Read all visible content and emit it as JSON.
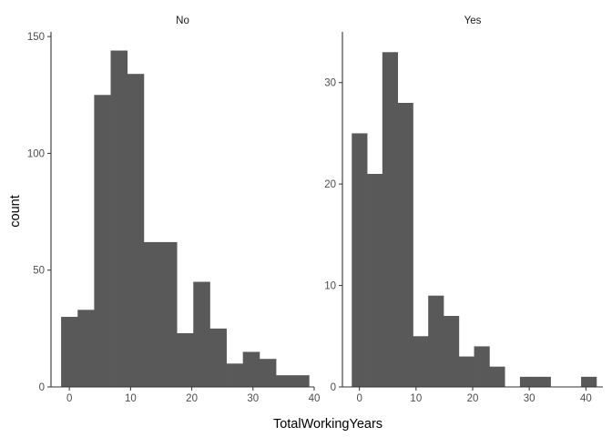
{
  "chart_data": {
    "type": "bar",
    "subtype": "histogram",
    "xlabel": "TotalWorkingYears",
    "ylabel": "count",
    "binwidth": 2.7,
    "bar_color": "#595959",
    "grid": false,
    "legend": "none",
    "facets": [
      {
        "label": "No",
        "xlim": [
          -3,
          40
        ],
        "ylim": [
          0,
          152
        ],
        "xticks": [
          0,
          10,
          20,
          30,
          40
        ],
        "yticks": [
          0,
          50,
          100,
          150
        ],
        "bins": [
          {
            "x0": -1.35,
            "x1": 1.35,
            "count": 30
          },
          {
            "x0": 1.35,
            "x1": 4.05,
            "count": 33
          },
          {
            "x0": 4.05,
            "x1": 6.75,
            "count": 125
          },
          {
            "x0": 6.75,
            "x1": 9.45,
            "count": 144
          },
          {
            "x0": 9.45,
            "x1": 12.15,
            "count": 134
          },
          {
            "x0": 12.15,
            "x1": 14.85,
            "count": 62
          },
          {
            "x0": 14.85,
            "x1": 17.55,
            "count": 62
          },
          {
            "x0": 17.55,
            "x1": 20.25,
            "count": 23
          },
          {
            "x0": 20.25,
            "x1": 22.95,
            "count": 45
          },
          {
            "x0": 22.95,
            "x1": 25.65,
            "count": 25
          },
          {
            "x0": 25.65,
            "x1": 28.35,
            "count": 10
          },
          {
            "x0": 28.35,
            "x1": 31.05,
            "count": 15
          },
          {
            "x0": 31.05,
            "x1": 33.75,
            "count": 12
          },
          {
            "x0": 33.75,
            "x1": 36.45,
            "count": 5
          },
          {
            "x0": 36.45,
            "x1": 39.15,
            "count": 5
          }
        ]
      },
      {
        "label": "Yes",
        "xlim": [
          -3,
          43
        ],
        "ylim": [
          0,
          35
        ],
        "xticks": [
          0,
          10,
          20,
          30,
          40
        ],
        "yticks": [
          0,
          10,
          20,
          30
        ],
        "bins": [
          {
            "x0": -1.35,
            "x1": 1.35,
            "count": 25
          },
          {
            "x0": 1.35,
            "x1": 4.05,
            "count": 21
          },
          {
            "x0": 4.05,
            "x1": 6.75,
            "count": 33
          },
          {
            "x0": 6.75,
            "x1": 9.45,
            "count": 28
          },
          {
            "x0": 9.45,
            "x1": 12.15,
            "count": 5
          },
          {
            "x0": 12.15,
            "x1": 14.85,
            "count": 9
          },
          {
            "x0": 14.85,
            "x1": 17.55,
            "count": 7
          },
          {
            "x0": 17.55,
            "x1": 20.25,
            "count": 3
          },
          {
            "x0": 20.25,
            "x1": 22.95,
            "count": 4
          },
          {
            "x0": 22.95,
            "x1": 25.65,
            "count": 2
          },
          {
            "x0": 25.65,
            "x1": 28.35,
            "count": 0
          },
          {
            "x0": 28.35,
            "x1": 31.05,
            "count": 1
          },
          {
            "x0": 31.05,
            "x1": 33.75,
            "count": 1
          },
          {
            "x0": 33.75,
            "x1": 36.45,
            "count": 0
          },
          {
            "x0": 36.45,
            "x1": 39.15,
            "count": 0
          },
          {
            "x0": 39.15,
            "x1": 41.85,
            "count": 1
          }
        ]
      }
    ]
  }
}
